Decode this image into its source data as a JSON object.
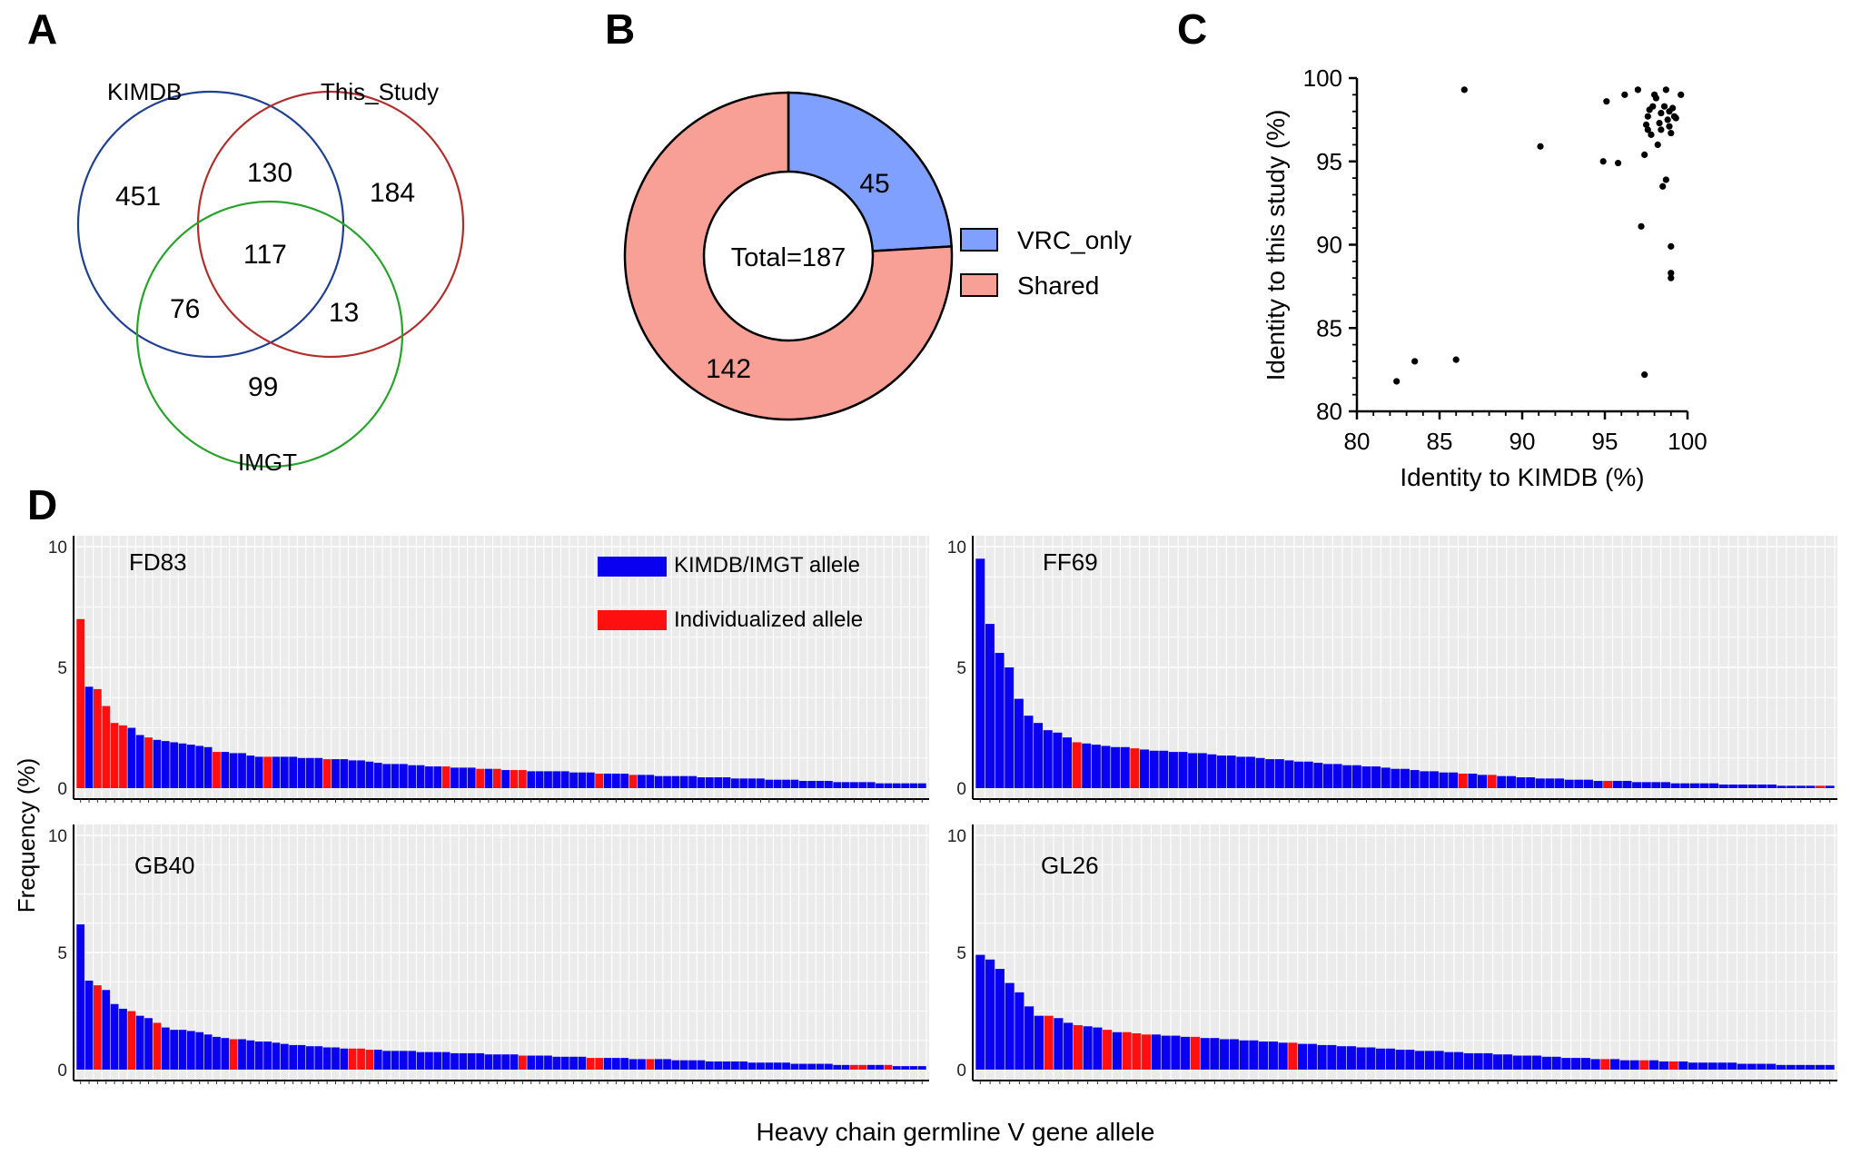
{
  "panels": {
    "a": "A",
    "b": "B",
    "c": "C",
    "d": "D"
  },
  "chart_data": [
    {
      "type": "venn",
      "sets": [
        "KIMDB",
        "This_Study",
        "IMGT"
      ],
      "regions": {
        "kimdb_only": 451,
        "kimdb_this_study": 130,
        "this_study_only": 184,
        "all_three": 117,
        "kimdb_imgt": 76,
        "this_study_imgt": 13,
        "imgt_only": 99
      },
      "colors": {
        "KIMDB": "#1f3f8f",
        "This_Study": "#b22d2d",
        "IMGT": "#27a22b"
      }
    },
    {
      "type": "pie",
      "donut": true,
      "center_label": "Total=187",
      "categories": [
        "VRC_only",
        "Shared"
      ],
      "values": [
        45,
        142
      ],
      "colors": [
        "#7fa0ff",
        "#f8a096"
      ],
      "legend": "right"
    },
    {
      "type": "scatter",
      "xlabel": "Identity to KIMDB (%)",
      "ylabel": "Identity to this study (%)",
      "xlim": [
        80,
        100
      ],
      "ylim": [
        80,
        100
      ],
      "xticks": [
        "80",
        "85",
        "90",
        "95",
        "100"
      ],
      "yticks": [
        "80",
        "85",
        "90",
        "95",
        "100"
      ],
      "points": [
        [
          82.4,
          81.8
        ],
        [
          83.5,
          83.0
        ],
        [
          86.0,
          83.1
        ],
        [
          86.5,
          99.3
        ],
        [
          91.1,
          95.9
        ],
        [
          94.9,
          95.0
        ],
        [
          95.1,
          98.6
        ],
        [
          95.8,
          94.9
        ],
        [
          96.2,
          99.0
        ],
        [
          97.0,
          99.3
        ],
        [
          97.2,
          91.1
        ],
        [
          97.4,
          82.2
        ],
        [
          97.4,
          95.4
        ],
        [
          97.5,
          97.2
        ],
        [
          97.6,
          97.7
        ],
        [
          97.7,
          98.1
        ],
        [
          97.8,
          96.6
        ],
        [
          97.9,
          98.3
        ],
        [
          98.0,
          99.0
        ],
        [
          98.2,
          96.0
        ],
        [
          98.3,
          97.3
        ],
        [
          98.4,
          97.9
        ],
        [
          98.5,
          93.5
        ],
        [
          98.6,
          98.3
        ],
        [
          98.7,
          93.9
        ],
        [
          98.7,
          99.3
        ],
        [
          98.8,
          97.5
        ],
        [
          98.9,
          98.0
        ],
        [
          99.0,
          96.7
        ],
        [
          99.0,
          89.9
        ],
        [
          99.0,
          88.3
        ],
        [
          99.0,
          88.0
        ],
        [
          99.1,
          98.2
        ],
        [
          99.2,
          97.7
        ],
        [
          99.3,
          97.6
        ],
        [
          99.6,
          99.0
        ],
        [
          98.1,
          98.8
        ],
        [
          97.6,
          96.9
        ],
        [
          98.9,
          97.1
        ],
        [
          98.4,
          96.9
        ]
      ]
    },
    {
      "type": "bar",
      "group_title": "Heavy chain germline V gene allele",
      "ylabel": "Frequency (%)",
      "ylim": [
        0,
        10
      ],
      "yticks": [
        "0",
        "5",
        "10"
      ],
      "legend": [
        {
          "label": "KIMDB/IMGT allele",
          "color": "#0a00f0"
        },
        {
          "label": "Individualized allele",
          "color": "#ff1010"
        }
      ],
      "series": [
        {
          "name": "FD83",
          "values": [
            7.0,
            4.2,
            4.1,
            3.4,
            2.7,
            2.6,
            2.5,
            2.2,
            2.1,
            2.0,
            1.95,
            1.9,
            1.85,
            1.8,
            1.75,
            1.7,
            1.5,
            1.5,
            1.45,
            1.45,
            1.35,
            1.3,
            1.3,
            1.3,
            1.3,
            1.3,
            1.25,
            1.25,
            1.25,
            1.2,
            1.2,
            1.2,
            1.15,
            1.15,
            1.1,
            1.05,
            1.0,
            1.0,
            1.0,
            0.95,
            0.95,
            0.9,
            0.9,
            0.9,
            0.85,
            0.85,
            0.85,
            0.8,
            0.8,
            0.8,
            0.75,
            0.75,
            0.75,
            0.7,
            0.7,
            0.7,
            0.7,
            0.7,
            0.65,
            0.65,
            0.65,
            0.6,
            0.6,
            0.6,
            0.6,
            0.55,
            0.55,
            0.55,
            0.5,
            0.5,
            0.5,
            0.5,
            0.5,
            0.45,
            0.45,
            0.45,
            0.45,
            0.4,
            0.4,
            0.4,
            0.4,
            0.35,
            0.35,
            0.35,
            0.35,
            0.3,
            0.3,
            0.3,
            0.3,
            0.25,
            0.25,
            0.25,
            0.25,
            0.25,
            0.2,
            0.2,
            0.2,
            0.2,
            0.2,
            0.2
          ],
          "highlight": [
            0,
            2,
            3,
            4,
            5,
            8,
            16,
            22,
            29,
            43,
            47,
            49,
            51,
            52,
            61,
            65
          ]
        },
        {
          "name": "FF69",
          "values": [
            9.5,
            6.8,
            5.6,
            5.0,
            3.7,
            3.0,
            2.7,
            2.4,
            2.3,
            2.1,
            1.9,
            1.85,
            1.8,
            1.75,
            1.7,
            1.7,
            1.65,
            1.6,
            1.55,
            1.55,
            1.5,
            1.5,
            1.45,
            1.45,
            1.4,
            1.35,
            1.35,
            1.3,
            1.3,
            1.25,
            1.2,
            1.2,
            1.15,
            1.1,
            1.1,
            1.05,
            1.0,
            1.0,
            0.95,
            0.95,
            0.9,
            0.9,
            0.85,
            0.8,
            0.8,
            0.75,
            0.7,
            0.7,
            0.65,
            0.65,
            0.6,
            0.6,
            0.55,
            0.55,
            0.5,
            0.5,
            0.45,
            0.45,
            0.4,
            0.4,
            0.4,
            0.35,
            0.35,
            0.35,
            0.3,
            0.3,
            0.3,
            0.3,
            0.25,
            0.25,
            0.25,
            0.25,
            0.2,
            0.2,
            0.2,
            0.2,
            0.2,
            0.15,
            0.15,
            0.15,
            0.15,
            0.15,
            0.15,
            0.1,
            0.1,
            0.1,
            0.1,
            0.1,
            0.1
          ],
          "highlight": [
            10,
            16,
            50,
            53,
            65,
            87
          ]
        },
        {
          "name": "GB40",
          "values": [
            6.2,
            3.8,
            3.6,
            3.4,
            2.8,
            2.6,
            2.5,
            2.3,
            2.2,
            2.0,
            1.8,
            1.7,
            1.7,
            1.65,
            1.6,
            1.5,
            1.4,
            1.35,
            1.3,
            1.3,
            1.25,
            1.2,
            1.2,
            1.15,
            1.1,
            1.05,
            1.05,
            1.0,
            1.0,
            0.95,
            0.95,
            0.9,
            0.9,
            0.9,
            0.85,
            0.85,
            0.8,
            0.8,
            0.8,
            0.8,
            0.75,
            0.75,
            0.75,
            0.75,
            0.7,
            0.7,
            0.7,
            0.7,
            0.65,
            0.65,
            0.65,
            0.65,
            0.6,
            0.6,
            0.6,
            0.6,
            0.55,
            0.55,
            0.55,
            0.55,
            0.5,
            0.5,
            0.5,
            0.5,
            0.5,
            0.45,
            0.45,
            0.45,
            0.45,
            0.45,
            0.4,
            0.4,
            0.4,
            0.4,
            0.35,
            0.35,
            0.35,
            0.35,
            0.35,
            0.3,
            0.3,
            0.3,
            0.3,
            0.3,
            0.25,
            0.25,
            0.25,
            0.25,
            0.25,
            0.2,
            0.2,
            0.2,
            0.2,
            0.2,
            0.2,
            0.2,
            0.15,
            0.15,
            0.15,
            0.15
          ],
          "highlight": [
            2,
            6,
            9,
            18,
            32,
            33,
            34,
            52,
            60,
            61,
            67,
            91,
            92,
            95
          ]
        },
        {
          "name": "GL26",
          "values": [
            4.9,
            4.7,
            4.3,
            3.7,
            3.3,
            2.7,
            2.3,
            2.3,
            2.2,
            2.0,
            1.9,
            1.85,
            1.8,
            1.7,
            1.6,
            1.6,
            1.55,
            1.5,
            1.5,
            1.45,
            1.45,
            1.4,
            1.4,
            1.35,
            1.35,
            1.3,
            1.3,
            1.25,
            1.25,
            1.2,
            1.2,
            1.15,
            1.15,
            1.1,
            1.1,
            1.05,
            1.05,
            1.0,
            1.0,
            0.95,
            0.95,
            0.9,
            0.9,
            0.85,
            0.85,
            0.8,
            0.8,
            0.8,
            0.75,
            0.75,
            0.7,
            0.7,
            0.7,
            0.65,
            0.65,
            0.6,
            0.6,
            0.6,
            0.55,
            0.55,
            0.5,
            0.5,
            0.5,
            0.45,
            0.45,
            0.45,
            0.4,
            0.4,
            0.4,
            0.4,
            0.35,
            0.35,
            0.35,
            0.3,
            0.3,
            0.3,
            0.3,
            0.3,
            0.25,
            0.25,
            0.25,
            0.25,
            0.2,
            0.2,
            0.2,
            0.2,
            0.2,
            0.2
          ],
          "highlight": [
            7,
            10,
            13,
            15,
            16,
            17,
            22,
            32,
            64,
            68,
            71
          ]
        }
      ]
    }
  ]
}
